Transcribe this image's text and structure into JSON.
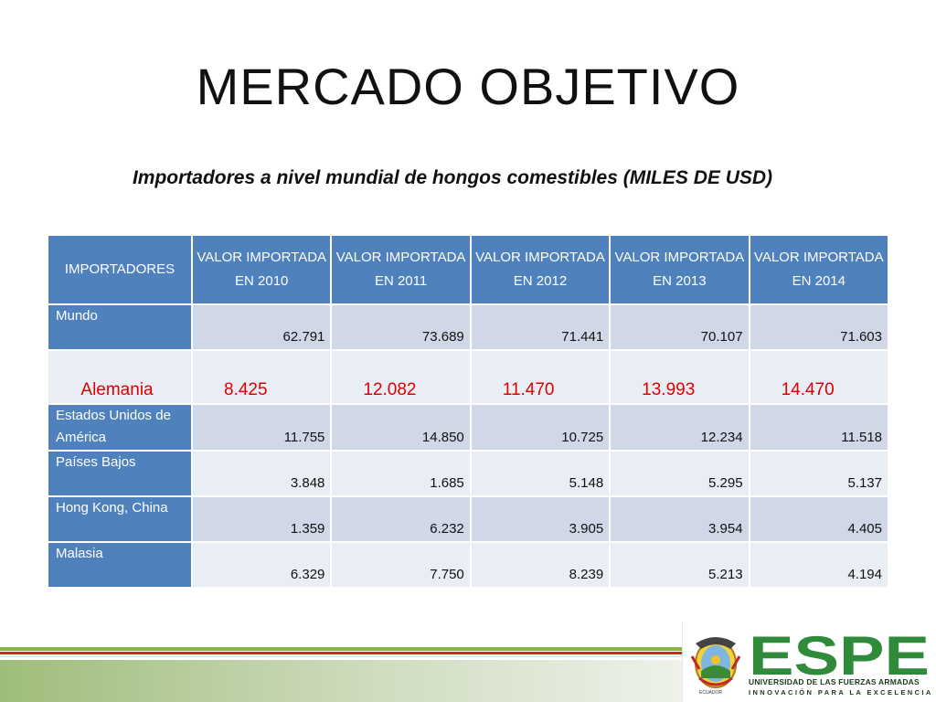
{
  "slide": {
    "title": "MERCADO OBJETIVO",
    "subtitle": "Importadores a nivel mundial de hongos comestibles (MILES DE USD)"
  },
  "table": {
    "headers": [
      "IMPORTADORES",
      "VALOR IMPORTADA EN 2010",
      "VALOR IMPORTADA EN 2011",
      "VALOR IMPORTADA EN 2012",
      "VALOR IMPORTADA EN 2013",
      "VALOR IMPORTADA EN 2014"
    ],
    "rows": [
      {
        "name": "Mundo",
        "values": [
          "62.791",
          "73.689",
          "71.441",
          "70.107",
          "71.603"
        ]
      },
      {
        "name": "Alemania",
        "values": [
          "8.425",
          "12.082",
          "11.470",
          "13.993",
          "14.470"
        ]
      },
      {
        "name": "Estados Unidos de América",
        "values": [
          "11.755",
          "14.850",
          "10.725",
          "12.234",
          "11.518"
        ]
      },
      {
        "name": "Países Bajos",
        "values": [
          "3.848",
          "1.685",
          "5.148",
          "5.295",
          "5.137"
        ]
      },
      {
        "name": "Hong Kong, China",
        "values": [
          "1.359",
          "6.232",
          "3.905",
          "3.954",
          "4.405"
        ]
      },
      {
        "name": "Malasia",
        "values": [
          "6.329",
          "7.750",
          "8.239",
          "5.213",
          "4.194"
        ]
      }
    ]
  },
  "footer": {
    "logo_word": "ESPE",
    "university": "UNIVERSIDAD DE LAS FUERZAS ARMADAS",
    "motto": "INNOVACIÓN PARA LA EXCELENCIA",
    "crest_caption": "ECUADOR",
    "colors": {
      "green": "#2f8a3a",
      "red": "#cc2b1f",
      "header_blue": "#4f81bd"
    }
  }
}
